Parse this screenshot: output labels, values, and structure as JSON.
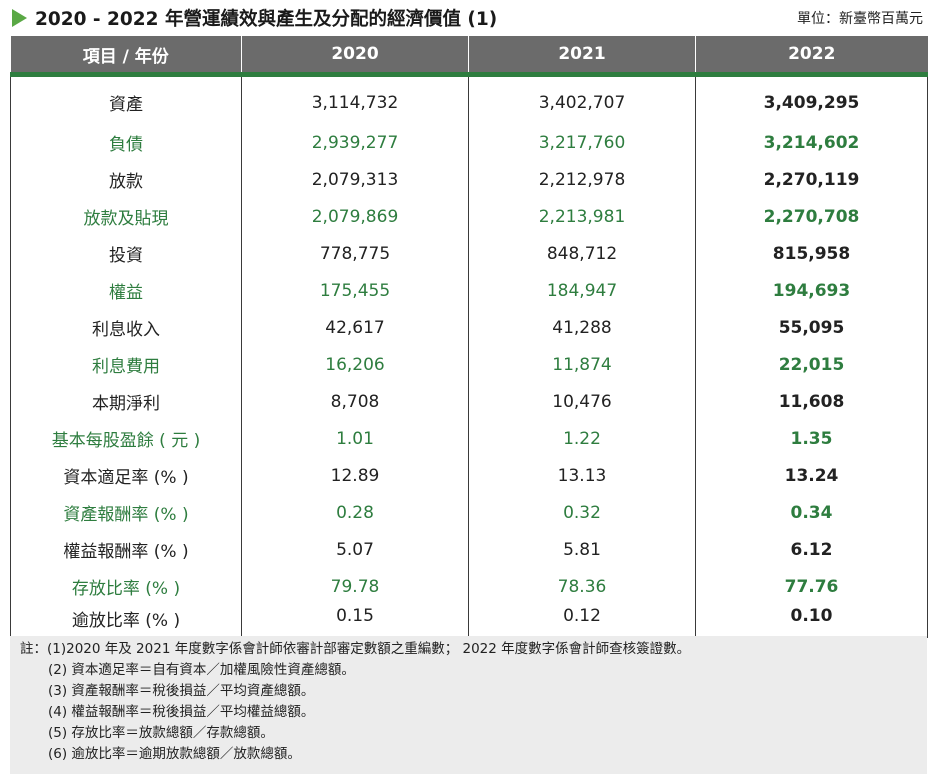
{
  "title": "2020 - 2022 年營運績效與產生及分配的經濟價值 (1)",
  "unit": "單位：新臺幣百萬元",
  "icons": {
    "title_marker": "play-triangle-icon"
  },
  "colors": {
    "accent_green": "#2e7d3f",
    "header_gray": "#6b6b6b",
    "marker_green": "#5aa845",
    "notes_bg": "#ececec"
  },
  "table": {
    "headers": [
      "項目 / 年份",
      "2020",
      "2021",
      "2022"
    ],
    "rows": [
      [
        "資產",
        "3,114,732",
        "3,402,707",
        "3,409,295"
      ],
      [
        "負債",
        "2,939,277",
        "3,217,760",
        "3,214,602"
      ],
      [
        "放款",
        "2,079,313",
        "2,212,978",
        "2,270,119"
      ],
      [
        "放款及貼現",
        "2,079,869",
        "2,213,981",
        "2,270,708"
      ],
      [
        "投資",
        "778,775",
        "848,712",
        "815,958"
      ],
      [
        "權益",
        "175,455",
        "184,947",
        "194,693"
      ],
      [
        "利息收入",
        "42,617",
        "41,288",
        "55,095"
      ],
      [
        "利息費用",
        "16,206",
        "11,874",
        "22,015"
      ],
      [
        "本期淨利",
        "8,708",
        "10,476",
        "11,608"
      ],
      [
        "基本每股盈餘 ( 元 )",
        "1.01",
        "1.22",
        "1.35"
      ],
      [
        "資本適足率 (% )",
        "12.89",
        "13.13",
        "13.24"
      ],
      [
        "資產報酬率 (% )",
        "0.28",
        "0.32",
        "0.34"
      ],
      [
        "權益報酬率 (% )",
        "5.07",
        "5.81",
        "6.12"
      ],
      [
        "存放比率 (% )",
        "79.78",
        "78.36",
        "77.76"
      ],
      [
        "逾放比率 (% )",
        "0.15",
        "0.12",
        "0.10"
      ]
    ]
  },
  "notes": [
    "註：(1)2020 年及 2021 年度數字係會計師依審計部審定數額之重編數； 2022 年度數字係會計師查核簽證數。",
    "(2) 資本適足率＝自有資本／加權風險性資產總額。",
    "(3) 資產報酬率＝稅後損益／平均資產總額。",
    "(4) 權益報酬率＝稅後損益／平均權益總額。",
    "(5) 存放比率＝放款總額／存款總額。",
    "(6) 逾放比率＝逾期放款總額／放款總額。"
  ]
}
